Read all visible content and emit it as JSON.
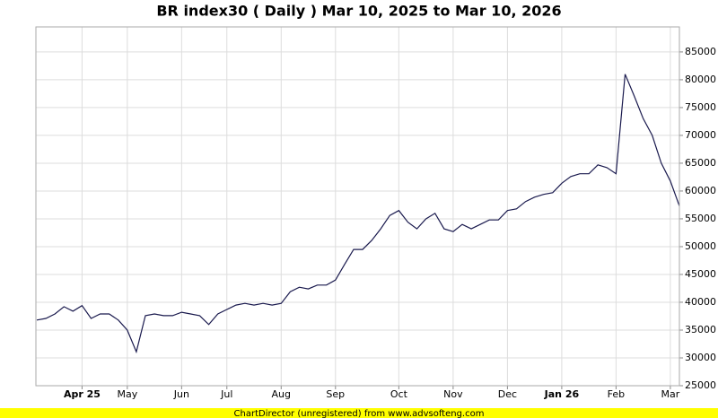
{
  "chart_data": {
    "type": "line",
    "title": "BR index30 ( Daily ) Mar 10, 2025 to Mar 10, 2026",
    "footer": "ChartDirector (unregistered) from www.advsofteng.com",
    "categories": [
      null,
      null,
      null,
      null,
      null,
      "Apr 25",
      null,
      null,
      null,
      null,
      "May",
      null,
      null,
      null,
      null,
      null,
      "Jun",
      null,
      null,
      null,
      null,
      "Jul",
      null,
      null,
      null,
      null,
      null,
      "Aug",
      null,
      null,
      null,
      null,
      null,
      "Sep",
      null,
      null,
      null,
      null,
      null,
      null,
      "Oct",
      null,
      null,
      null,
      null,
      null,
      "Nov",
      null,
      null,
      null,
      null,
      null,
      "Dec",
      null,
      null,
      null,
      null,
      null,
      "Jan 26",
      null,
      null,
      null,
      null,
      null,
      "Feb",
      null,
      null,
      null,
      null,
      null,
      "Mar",
      null
    ],
    "values": [
      36800,
      37100,
      37900,
      39200,
      38400,
      39400,
      37100,
      37900,
      37900,
      36800,
      35000,
      31100,
      37600,
      37900,
      37600,
      37600,
      38200,
      37900,
      37600,
      36000,
      37900,
      38700,
      39500,
      39800,
      39500,
      39800,
      39500,
      39800,
      41900,
      42700,
      42400,
      43100,
      43100,
      44000,
      46800,
      49500,
      49500,
      51100,
      53200,
      55600,
      56500,
      54400,
      53200,
      55000,
      56000,
      53200,
      52700,
      54000,
      53200,
      54000,
      54800,
      54800,
      56500,
      56800,
      58100,
      58900,
      59400,
      59700,
      61400,
      62600,
      63100,
      63100,
      64700,
      64200,
      63100,
      81000,
      77100,
      73000,
      70000,
      65000,
      61800,
      57300
    ],
    "color": "#1a1a4e",
    "ylim": [
      25000,
      89500
    ],
    "yticks": [
      25000,
      30000,
      35000,
      40000,
      45000,
      50000,
      55000,
      60000,
      65000,
      70000,
      75000,
      80000,
      85000
    ],
    "grid": true
  }
}
